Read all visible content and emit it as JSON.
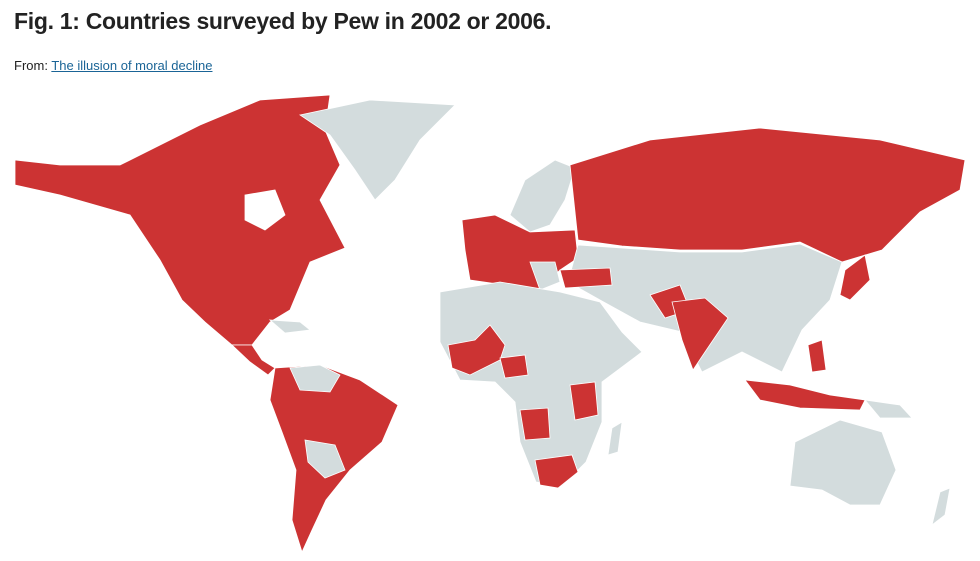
{
  "header": {
    "title": "Fig. 1: Countries surveyed by Pew in 2002 or 2006.",
    "from_label": "From:",
    "link": "The illusion of moral decline"
  }
}
